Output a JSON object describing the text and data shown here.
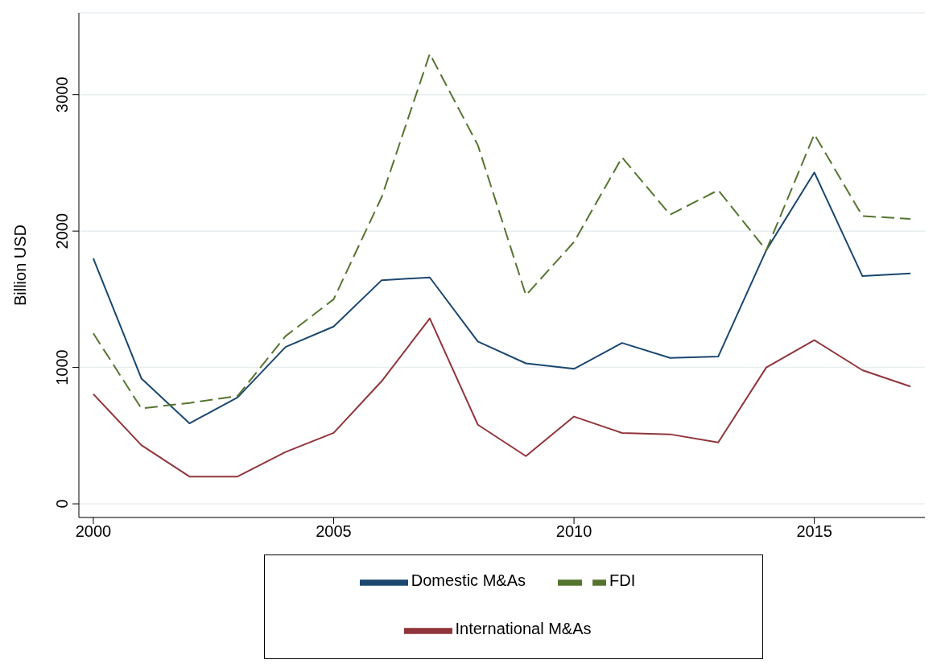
{
  "chart_data": {
    "type": "line",
    "ylabel": "Billion USD",
    "x": [
      2000,
      2001,
      2002,
      2003,
      2004,
      2005,
      2006,
      2007,
      2008,
      2009,
      2010,
      2011,
      2012,
      2013,
      2014,
      2015,
      2016,
      2017
    ],
    "series": [
      {
        "name": "Domestic M&As",
        "color": "#1a476f",
        "line_style": "solid",
        "values": [
          1800,
          920,
          590,
          780,
          1150,
          1300,
          1640,
          1660,
          1190,
          1030,
          990,
          1180,
          1070,
          1080,
          1860,
          2430,
          1670,
          1690
        ]
      },
      {
        "name": "International M&As",
        "color": "#90353b",
        "line_style": "solid",
        "values": [
          805,
          430,
          200,
          200,
          380,
          520,
          900,
          1360,
          580,
          350,
          640,
          520,
          510,
          450,
          1000,
          1200,
          980,
          860
        ]
      },
      {
        "name": "FDI",
        "color": "#55752f",
        "line_style": "dashed",
        "values": [
          1250,
          700,
          740,
          790,
          1230,
          1500,
          2250,
          3300,
          2630,
          1530,
          1920,
          2540,
          2120,
          2300,
          1860,
          2710,
          2110,
          2090
        ]
      }
    ],
    "xlim": [
      1999.7,
      2017.3
    ],
    "xticks": [
      2000,
      2005,
      2010,
      2015
    ],
    "ylim": [
      -100,
      3600
    ],
    "yticks": [
      0,
      1000,
      2000,
      3000
    ],
    "grid": "y",
    "legend": "bottom",
    "marker": "none"
  }
}
